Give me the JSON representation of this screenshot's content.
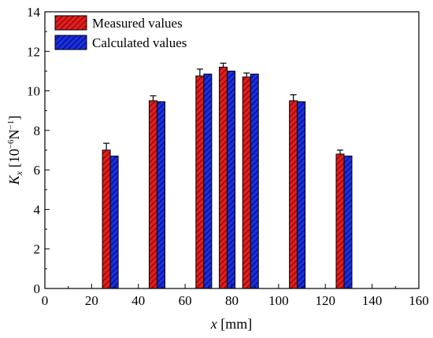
{
  "chart_data": {
    "type": "bar",
    "x": [
      28,
      48,
      68,
      78,
      88,
      108,
      128
    ],
    "series": [
      {
        "name": "Measured values",
        "color": "#e01e1e",
        "hatch": "#7a0000",
        "values": [
          7.0,
          9.5,
          10.75,
          11.2,
          10.7,
          9.5,
          6.8
        ],
        "error": [
          0.35,
          0.25,
          0.35,
          0.2,
          0.2,
          0.3,
          0.2
        ]
      },
      {
        "name": "Calculated values",
        "color": "#1a2fe0",
        "hatch": "#00066a",
        "values": [
          6.7,
          9.45,
          10.85,
          11.0,
          10.85,
          9.45,
          6.7
        ]
      }
    ],
    "xlabel": {
      "italic": "x",
      "rest": " [mm]"
    },
    "ylabel": {
      "base": "K",
      "sub": "x",
      "rest": " [10",
      "sup": "−6",
      "tail": "N",
      "sup2": "−1",
      "end": "]"
    },
    "xlim": [
      0,
      160
    ],
    "ylim": [
      0,
      14
    ],
    "xticks": [
      "0",
      "20",
      "40",
      "60",
      "80",
      "100",
      "120",
      "140",
      "160"
    ],
    "yticks": [
      "0",
      "2",
      "4",
      "6",
      "8",
      "10",
      "12",
      "14"
    ],
    "legend_position": "top-left",
    "grid": false
  }
}
